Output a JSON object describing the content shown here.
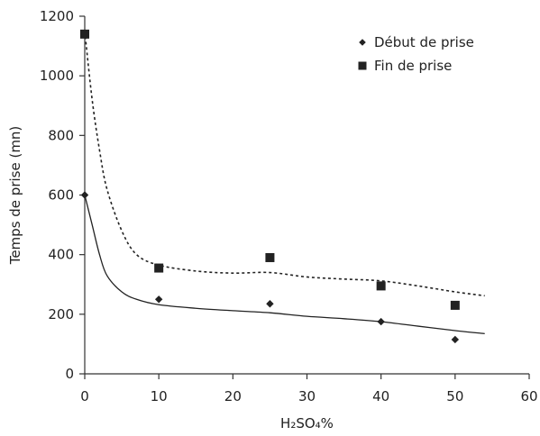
{
  "chart_data": {
    "type": "scatter",
    "xlabel": "H₂SO₄%",
    "ylabel": "Temps de prise (mn)",
    "xlim": [
      0,
      60
    ],
    "ylim": [
      0,
      1200
    ],
    "x_ticks": [
      "0",
      "10",
      "20",
      "30",
      "40",
      "50",
      "60"
    ],
    "y_ticks": [
      "0",
      "200",
      "400",
      "600",
      "800",
      "1000",
      "1200"
    ],
    "grid": false,
    "legend_position": "top-right",
    "series": [
      {
        "name": "Début de prise",
        "marker": "diamond",
        "color": "#222222",
        "points": [
          {
            "x": 0,
            "y": 600
          },
          {
            "x": 10,
            "y": 250
          },
          {
            "x": 25,
            "y": 235
          },
          {
            "x": 40,
            "y": 175
          },
          {
            "x": 50,
            "y": 115
          }
        ],
        "trend_line": {
          "style": "solid",
          "points": [
            [
              0,
              600
            ],
            [
              1,
              500
            ],
            [
              2,
              400
            ],
            [
              3,
              330
            ],
            [
              5,
              275
            ],
            [
              7,
              250
            ],
            [
              10,
              232
            ],
            [
              15,
              220
            ],
            [
              20,
              212
            ],
            [
              25,
              205
            ],
            [
              30,
              193
            ],
            [
              35,
              185
            ],
            [
              40,
              175
            ],
            [
              45,
              160
            ],
            [
              50,
              145
            ],
            [
              54,
              135
            ]
          ]
        }
      },
      {
        "name": "Fin de prise",
        "marker": "square",
        "color": "#222222",
        "points": [
          {
            "x": 0,
            "y": 1140
          },
          {
            "x": 10,
            "y": 355
          },
          {
            "x": 25,
            "y": 390
          },
          {
            "x": 40,
            "y": 295
          },
          {
            "x": 50,
            "y": 230
          }
        ],
        "trend_line": {
          "style": "dotted",
          "points": [
            [
              0,
              1150
            ],
            [
              1,
              920
            ],
            [
              2,
              750
            ],
            [
              3,
              620
            ],
            [
              5,
              480
            ],
            [
              7,
              400
            ],
            [
              10,
              365
            ],
            [
              15,
              345
            ],
            [
              20,
              338
            ],
            [
              25,
              340
            ],
            [
              30,
              325
            ],
            [
              35,
              318
            ],
            [
              40,
              312
            ],
            [
              45,
              295
            ],
            [
              50,
              275
            ],
            [
              54,
              262
            ]
          ]
        }
      }
    ]
  }
}
